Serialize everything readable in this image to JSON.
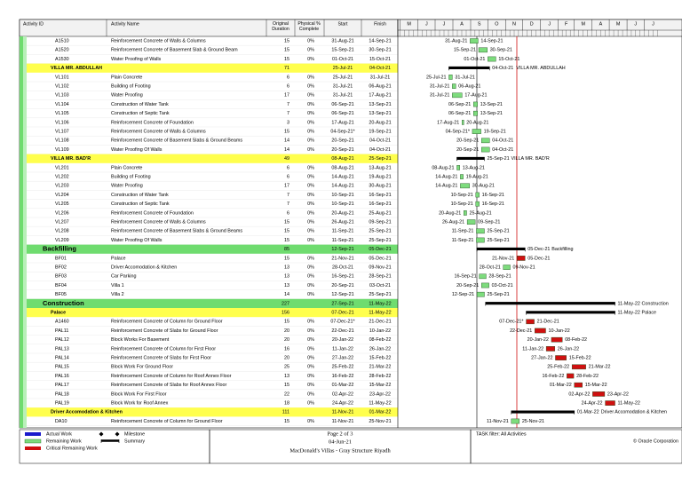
{
  "header": {
    "columns": [
      "Activity ID",
      "Activity Name",
      "Original Duration",
      "Physical % Complete",
      "Start",
      "Finish"
    ]
  },
  "timeline": {
    "months": [
      "M",
      "J",
      "J",
      "A",
      "S",
      "O",
      "N",
      "D",
      "J",
      "F",
      "M",
      "A",
      "M",
      "J",
      "J"
    ]
  },
  "rows": [
    {
      "id": "A1510",
      "name": "Reinforcement Concrete of Walls & Columns",
      "duration": 15,
      "complete": "0%",
      "start": "31-Aug-21",
      "finish": "14-Sep-21",
      "bar_color": "#7ddc7d"
    },
    {
      "id": "A1520",
      "name": "Reinforcement Concrete of Basement Slab & Ground Beam",
      "duration": 15,
      "complete": "0%",
      "start": "15-Sep-21",
      "finish": "30-Sep-21",
      "bar_color": "#7ddc7d"
    },
    {
      "id": "A1530",
      "name": "Water Proofing of Walls",
      "duration": 15,
      "complete": "0%",
      "start": "01-Oct-21",
      "finish": "15-Oct-21",
      "bar_color": "#7ddc7d"
    },
    {
      "wbs": "VILLA MR. ABDULLAH",
      "duration": 71,
      "start": "25-Jul-21",
      "finish": "04-Oct-21",
      "color": "#ffff4d"
    },
    {
      "id": "VL101",
      "name": "Plain Concrete",
      "duration": 6,
      "complete": "0%",
      "start": "25-Jul-21",
      "finish": "31-Jul-21",
      "bar_color": "#7ddc7d"
    },
    {
      "id": "VL102",
      "name": "Building of Footing",
      "duration": 6,
      "complete": "0%",
      "start": "31-Jul-21",
      "finish": "06-Aug-21",
      "bar_color": "#7ddc7d"
    },
    {
      "id": "VL103",
      "name": "Water Proofing",
      "duration": 17,
      "complete": "0%",
      "start": "31-Jul-21",
      "finish": "17-Aug-21",
      "bar_color": "#7ddc7d"
    },
    {
      "id": "VL104",
      "name": "Construction of Water Tank",
      "duration": 7,
      "complete": "0%",
      "start": "06-Sep-21",
      "finish": "13-Sep-21",
      "bar_color": "#7ddc7d"
    },
    {
      "id": "VL105",
      "name": "Construction of Septic Tank",
      "duration": 7,
      "complete": "0%",
      "start": "06-Sep-21",
      "finish": "13-Sep-21",
      "bar_color": "#7ddc7d"
    },
    {
      "id": "VL106",
      "name": "Reinforcement Concrete of Foundation",
      "duration": 3,
      "complete": "0%",
      "start": "17-Aug-21",
      "finish": "20-Aug-21",
      "bar_color": "#7ddc7d"
    },
    {
      "id": "VL107",
      "name": "Reinforcement Concrete of Walls & Columns",
      "duration": 15,
      "complete": "0%",
      "start": "04-Sep-21*",
      "finish": "19-Sep-21",
      "bar_color": "#7ddc7d"
    },
    {
      "id": "VL108",
      "name": "Reinforcement Concrete of Basement Slabs & Ground Beams",
      "duration": 14,
      "complete": "0%",
      "start": "20-Sep-21",
      "finish": "04-Oct-21",
      "bar_color": "#7ddc7d"
    },
    {
      "id": "VL109",
      "name": "Water Proofing Of Walls",
      "duration": 14,
      "complete": "0%",
      "start": "20-Sep-21",
      "finish": "04-Oct-21",
      "bar_color": "#7ddc7d"
    },
    {
      "wbs": "VILLA MR. BAD'R",
      "duration": 49,
      "start": "08-Aug-21",
      "finish": "25-Sep-21",
      "color": "#ffff4d"
    },
    {
      "id": "VL201",
      "name": "Plain Concrete",
      "duration": 6,
      "complete": "0%",
      "start": "08-Aug-21",
      "finish": "13-Aug-21",
      "bar_color": "#7ddc7d"
    },
    {
      "id": "VL202",
      "name": "Building of Footing",
      "duration": 6,
      "complete": "0%",
      "start": "14-Aug-21",
      "finish": "19-Aug-21",
      "bar_color": "#7ddc7d"
    },
    {
      "id": "VL203",
      "name": "Water Proofing",
      "duration": 17,
      "complete": "0%",
      "start": "14-Aug-21",
      "finish": "30-Aug-21",
      "bar_color": "#7ddc7d"
    },
    {
      "id": "VL204",
      "name": "Construction of Water Tank",
      "duration": 7,
      "complete": "0%",
      "start": "10-Sep-21",
      "finish": "16-Sep-21",
      "bar_color": "#7ddc7d"
    },
    {
      "id": "VL205",
      "name": "Construction of Septic Tank",
      "duration": 7,
      "complete": "0%",
      "start": "10-Sep-21",
      "finish": "16-Sep-21",
      "bar_color": "#7ddc7d"
    },
    {
      "id": "VL206",
      "name": "Reinforcement Concrete of Foundation",
      "duration": 6,
      "complete": "0%",
      "start": "20-Aug-21",
      "finish": "25-Aug-21",
      "bar_color": "#7ddc7d"
    },
    {
      "id": "VL207",
      "name": "Reinforcement Concrete of Walls & Columns",
      "duration": 15,
      "complete": "0%",
      "start": "26-Aug-21",
      "finish": "09-Sep-21",
      "bar_color": "#7ddc7d"
    },
    {
      "id": "VL208",
      "name": "Reinforcement Concrete of Basement Slabs & Ground Beams",
      "duration": 15,
      "complete": "0%",
      "start": "11-Sep-21",
      "finish": "25-Sep-21",
      "bar_color": "#7ddc7d"
    },
    {
      "id": "VL209",
      "name": "Water Proofing Of Walls",
      "duration": 15,
      "complete": "0%",
      "start": "11-Sep-21",
      "finish": "25-Sep-21",
      "bar_color": "#7ddc7d"
    },
    {
      "wbs": "Backfilling",
      "duration": 85,
      "start": "12-Sep-21",
      "finish": "05-Dec-21",
      "color": "#6fdc6f",
      "big": true
    },
    {
      "id": "BF01",
      "name": "Palace",
      "duration": 15,
      "complete": "0%",
      "start": "21-Nov-21",
      "finish": "05-Dec-21",
      "bar_color": "#d01010"
    },
    {
      "id": "BF02",
      "name": "Driver Accomodation & Kitchen",
      "duration": 13,
      "complete": "0%",
      "start": "28-Oct-21",
      "finish": "09-Nov-21",
      "bar_color": "#7ddc7d"
    },
    {
      "id": "BF03",
      "name": "Car Parking",
      "duration": 13,
      "complete": "0%",
      "start": "16-Sep-21",
      "finish": "28-Sep-21",
      "bar_color": "#7ddc7d"
    },
    {
      "id": "BF04",
      "name": "Villa 1",
      "duration": 13,
      "complete": "0%",
      "start": "20-Sep-21",
      "finish": "03-Oct-21",
      "bar_color": "#7ddc7d"
    },
    {
      "id": "BF05",
      "name": "Villa 2",
      "duration": 14,
      "complete": "0%",
      "start": "12-Sep-21",
      "finish": "25-Sep-21",
      "bar_color": "#7ddc7d"
    },
    {
      "wbs": "Construction",
      "duration": 227,
      "start": "27-Sep-21",
      "finish": "11-May-22",
      "color": "#6fdc6f",
      "big": true
    },
    {
      "wbs": "Palace",
      "duration": 156,
      "start": "07-Dec-21",
      "finish": "11-May-22",
      "color": "#ffff4d"
    },
    {
      "id": "A1460",
      "name": "Reinforcement Concrete of Column for Ground Floor",
      "duration": 15,
      "complete": "0%",
      "start": "07-Dec-21*",
      "finish": "21-Dec-21",
      "bar_color": "#d01010"
    },
    {
      "id": "PAL11",
      "name": "Reinforcement Concrete of Slabs for Ground Floor",
      "duration": 20,
      "complete": "0%",
      "start": "22-Dec-21",
      "finish": "10-Jan-22",
      "bar_color": "#d01010"
    },
    {
      "id": "PAL12",
      "name": "Block Works For Basement",
      "duration": 20,
      "complete": "0%",
      "start": "20-Jan-22",
      "finish": "08-Feb-22",
      "bar_color": "#d01010"
    },
    {
      "id": "PAL13",
      "name": "Reinforcement Concrete of Column for First Floor",
      "duration": 16,
      "complete": "0%",
      "start": "11-Jan-22",
      "finish": "26-Jan-22",
      "bar_color": "#d01010"
    },
    {
      "id": "PAL14",
      "name": "Reinforcement Concrete of Slabs for First Floor",
      "duration": 20,
      "complete": "0%",
      "start": "27-Jan-22",
      "finish": "15-Feb-22",
      "bar_color": "#d01010"
    },
    {
      "id": "PAL15",
      "name": "Block Work For Ground Floor",
      "duration": 25,
      "complete": "0%",
      "start": "25-Feb-22",
      "finish": "21-Mar-22",
      "bar_color": "#d01010"
    },
    {
      "id": "PAL16",
      "name": "Reinforcement Concrete of Column for Roof Annex Floor",
      "duration": 13,
      "complete": "0%",
      "start": "16-Feb-22",
      "finish": "28-Feb-22",
      "bar_color": "#d01010"
    },
    {
      "id": "PAL17",
      "name": "Reinforcement Concrete of Slabs for Roof Annex Floor",
      "duration": 15,
      "complete": "0%",
      "start": "01-Mar-22",
      "finish": "15-Mar-22",
      "bar_color": "#d01010"
    },
    {
      "id": "PAL18",
      "name": "Block Work For First Floor",
      "duration": 22,
      "complete": "0%",
      "start": "02-Apr-22",
      "finish": "23-Apr-22",
      "bar_color": "#d01010"
    },
    {
      "id": "PAL19",
      "name": "Block Work for Roof Annex",
      "duration": 18,
      "complete": "0%",
      "start": "24-Apr-22",
      "finish": "11-May-22",
      "bar_color": "#d01010"
    },
    {
      "wbs": "Driver Accomodation & Kitchen",
      "duration": 111,
      "start": "11-Nov-21",
      "finish": "01-Mar-22",
      "color": "#ffff4d"
    },
    {
      "id": "DA10",
      "name": "Reinforcement Concrete of Column for Ground Floor",
      "duration": 15,
      "complete": "0%",
      "start": "11-Nov-21",
      "finish": "25-Nov-21",
      "bar_color": "#7ddc7d"
    }
  ],
  "legend": {
    "items": [
      "Actual Work",
      "Remaining Work",
      "Critical Remaining Work",
      "Milestone",
      "Summary"
    ]
  },
  "footer": {
    "page": "Page 2 of 3",
    "date": "04-Jun-21",
    "project": "MacDonald's Villas - Gray Structure Riyadh",
    "filter": "TASK filter: All Activities",
    "copyright": "© Oracle Corporation"
  }
}
